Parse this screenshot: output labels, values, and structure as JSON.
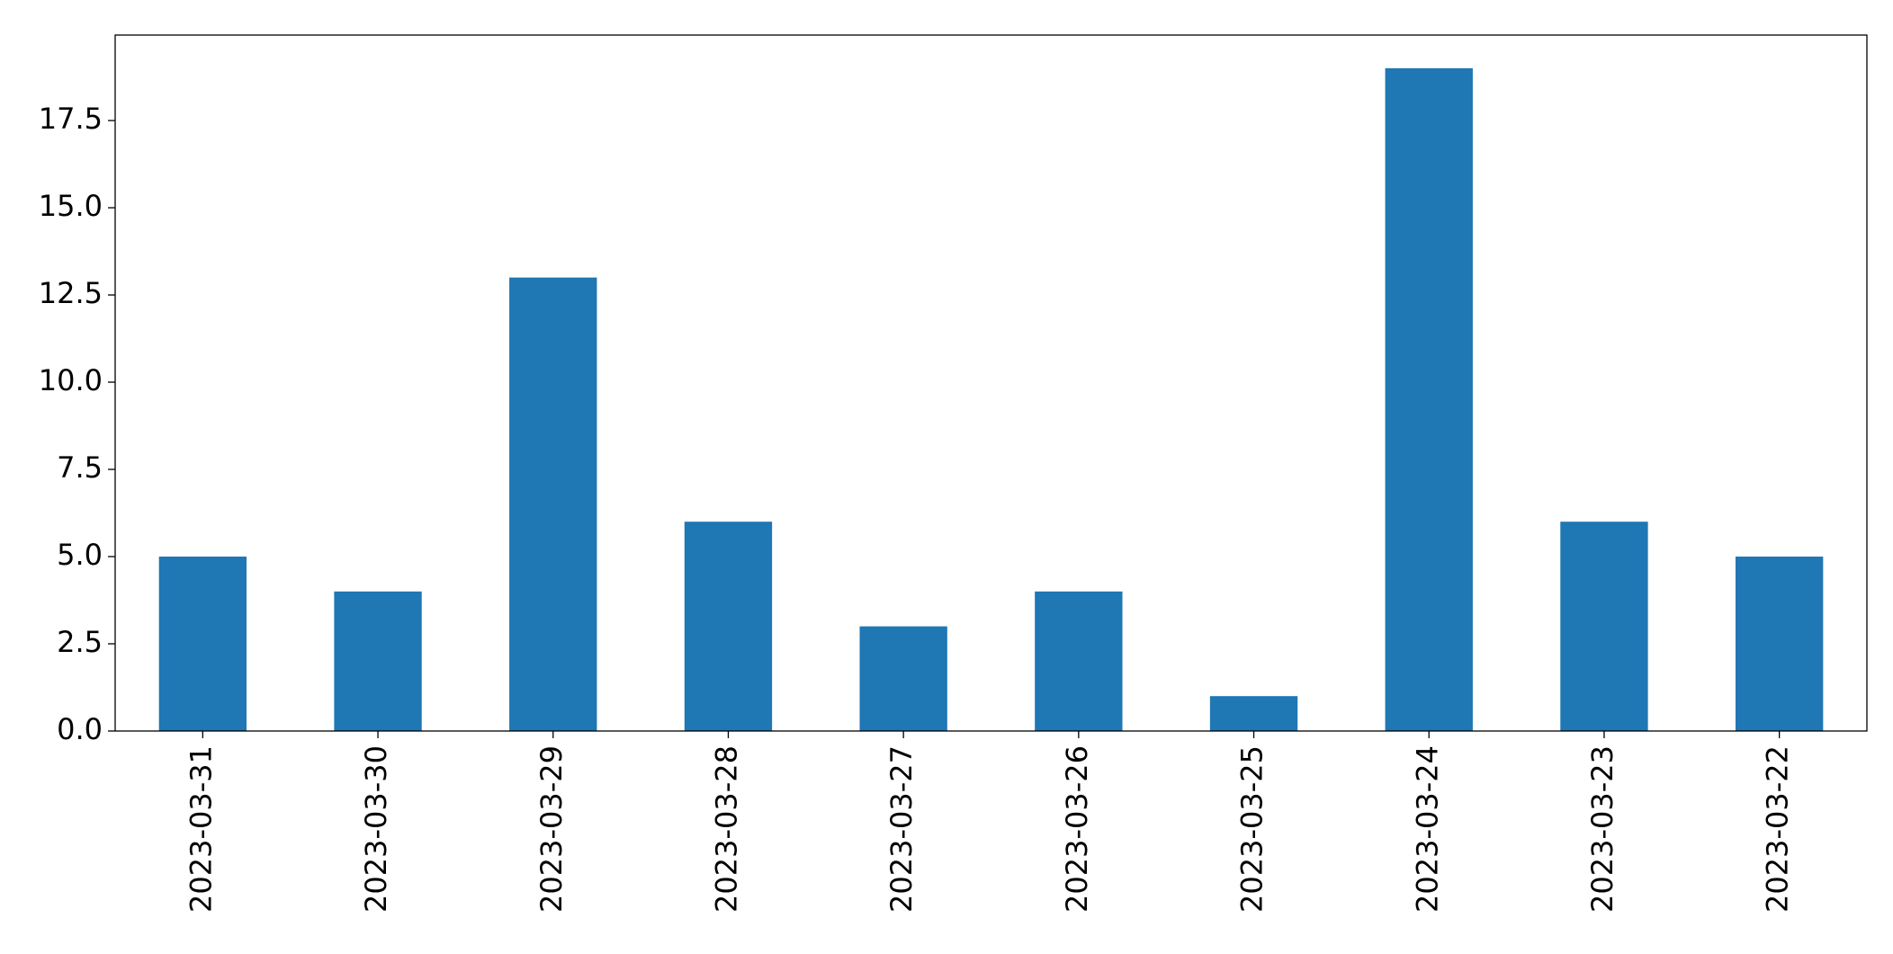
{
  "chart_data": {
    "type": "bar",
    "categories": [
      "2023-03-31",
      "2023-03-30",
      "2023-03-29",
      "2023-03-28",
      "2023-03-27",
      "2023-03-26",
      "2023-03-25",
      "2023-03-24",
      "2023-03-23",
      "2023-03-22"
    ],
    "values": [
      5,
      4,
      13,
      6,
      3,
      4,
      1,
      19,
      6,
      5
    ],
    "color": "#1f77b4",
    "ylim": [
      0,
      19.95
    ],
    "yticks": [
      {
        "value": 0,
        "label": "0.0"
      },
      2.5,
      {
        "value": 5,
        "label": "5.0"
      },
      7.5,
      {
        "value": 10,
        "label": "10.0"
      },
      12.5,
      {
        "value": 15,
        "label": "15.0"
      },
      17.5
    ],
    "grid": false
  }
}
